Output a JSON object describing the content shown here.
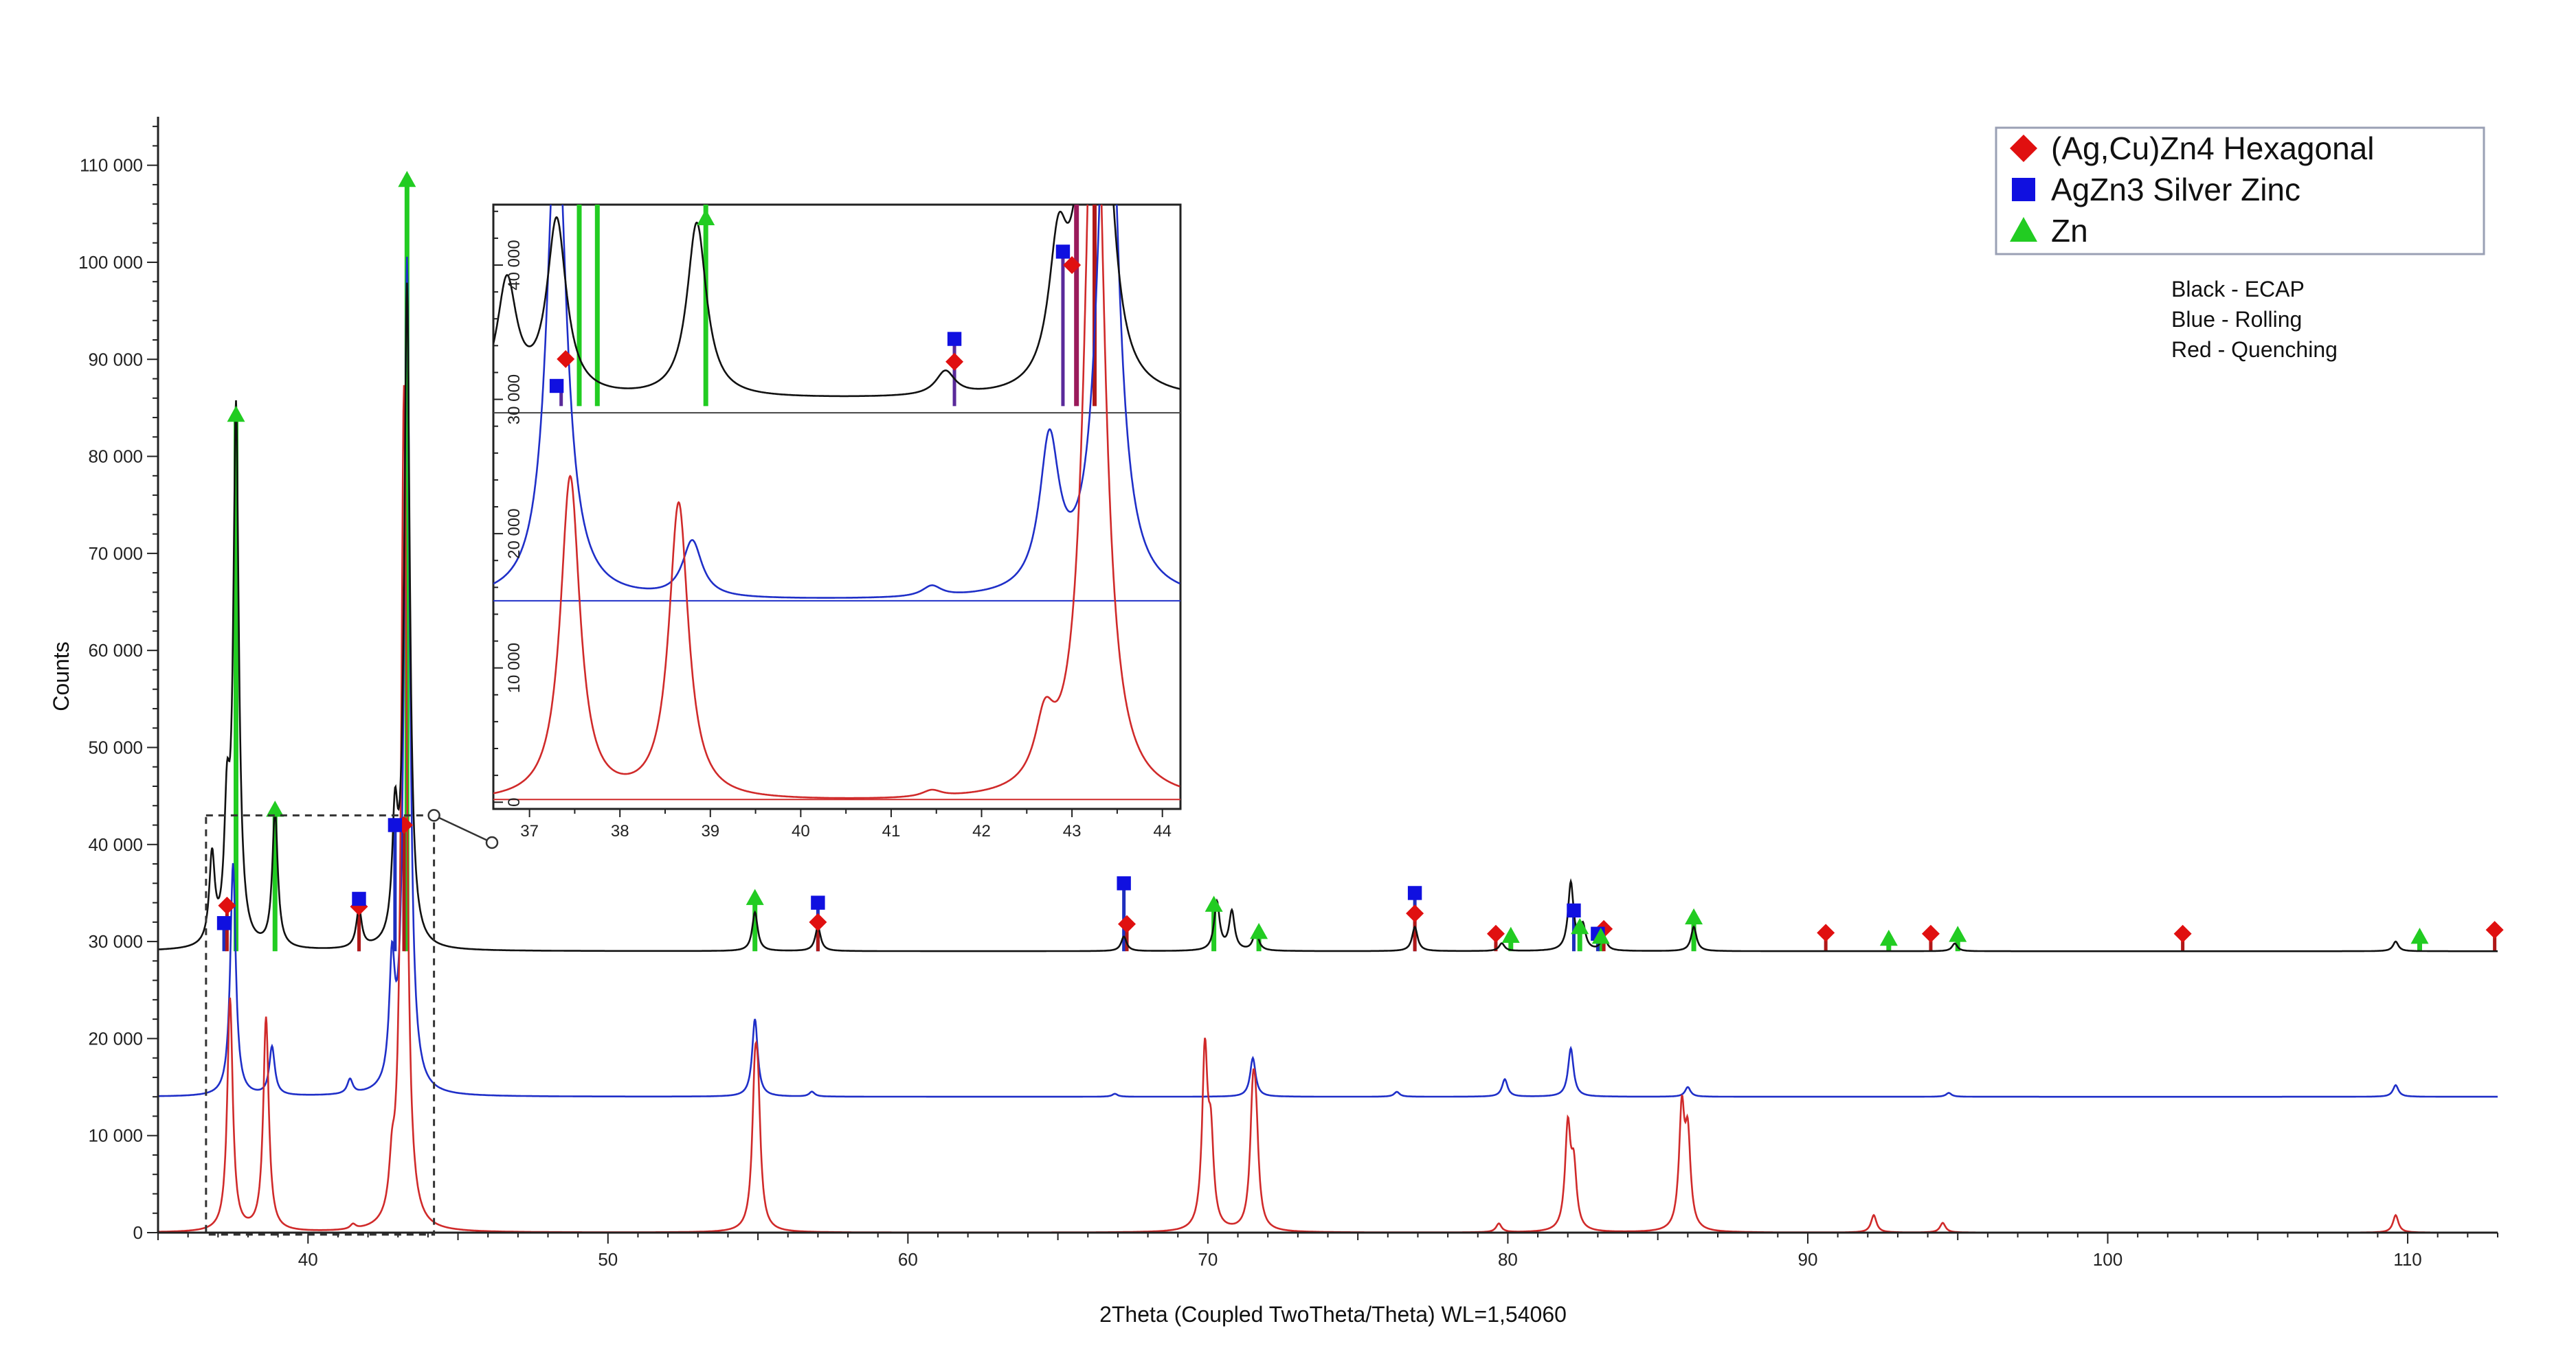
{
  "chart_data": {
    "type": "line",
    "xlabel": "2Theta (Coupled TwoTheta/Theta) WL=1,54060",
    "ylabel": "Counts",
    "xlim": [
      35,
      113
    ],
    "ylim": [
      0,
      115000
    ],
    "x_ticks": [
      40,
      50,
      60,
      70,
      80,
      90,
      100,
      110
    ],
    "y_ticks": [
      {
        "v": 0,
        "label": "0"
      },
      {
        "v": 10000,
        "label": "10 000"
      },
      {
        "v": 20000,
        "label": "20 000"
      },
      {
        "v": 30000,
        "label": "30 000"
      },
      {
        "v": 40000,
        "label": "40 000"
      },
      {
        "v": 50000,
        "label": "50 000"
      },
      {
        "v": 60000,
        "label": "60 000"
      },
      {
        "v": 70000,
        "label": "70 000"
      },
      {
        "v": 80000,
        "label": "80 000"
      },
      {
        "v": 90000,
        "label": "90 000"
      },
      {
        "v": 100000,
        "label": "100 000"
      },
      {
        "v": 110000,
        "label": "110 000"
      }
    ],
    "grid": false,
    "series": [
      {
        "label": "ECAP",
        "color": "#111111",
        "baseline": 29000,
        "peaks": [
          [
            36.8,
            38000
          ],
          [
            37.3,
            41500
          ],
          [
            37.6,
            84000
          ],
          [
            38.9,
            43000
          ],
          [
            41.7,
            33000
          ],
          [
            42.9,
            41000
          ],
          [
            43.3,
            97000
          ],
          [
            54.9,
            33000
          ],
          [
            57.0,
            31500
          ],
          [
            67.2,
            30500
          ],
          [
            70.3,
            34000
          ],
          [
            70.8,
            33000
          ],
          [
            71.6,
            31000
          ],
          [
            76.9,
            31500
          ],
          [
            79.8,
            29800
          ],
          [
            82.1,
            36000
          ],
          [
            82.5,
            31500
          ],
          [
            83.2,
            30500
          ],
          [
            86.2,
            31500
          ],
          [
            94.9,
            29800
          ],
          [
            109.6,
            30000
          ]
        ]
      },
      {
        "label": "Rolling",
        "color": "#1f2fc8",
        "baseline": 14000,
        "peaks": [
          [
            37.5,
            38000
          ],
          [
            38.8,
            19000
          ],
          [
            41.4,
            15500
          ],
          [
            42.8,
            26000
          ],
          [
            43.3,
            100000
          ],
          [
            54.9,
            22000
          ],
          [
            56.8,
            14500
          ],
          [
            66.9,
            14300
          ],
          [
            71.5,
            18000
          ],
          [
            76.3,
            14500
          ],
          [
            79.9,
            15800
          ],
          [
            82.1,
            19000
          ],
          [
            86.0,
            15000
          ],
          [
            94.7,
            14400
          ],
          [
            109.6,
            15200
          ]
        ]
      },
      {
        "label": "Quenching",
        "color": "#d02a2a",
        "baseline": 0,
        "peaks": [
          [
            37.4,
            24000
          ],
          [
            38.6,
            22000
          ],
          [
            41.5,
            500
          ],
          [
            42.8,
            4500
          ],
          [
            43.2,
            87000
          ],
          [
            54.9,
            13000
          ],
          [
            55.0,
            10500
          ],
          [
            69.9,
            18000
          ],
          [
            70.1,
            8500
          ],
          [
            71.5,
            11500
          ],
          [
            71.6,
            8500
          ],
          [
            79.7,
            900
          ],
          [
            82.0,
            10500
          ],
          [
            82.2,
            6000
          ],
          [
            85.8,
            12000
          ],
          [
            86.0,
            9000
          ],
          [
            92.2,
            1800
          ],
          [
            94.5,
            1000
          ],
          [
            109.6,
            1800
          ]
        ]
      }
    ],
    "markers": {
      "ag_cu_zn4": [
        37.3,
        41.7,
        43.2,
        57.0,
        67.3,
        76.9,
        79.6,
        83.2,
        90.6,
        94.1,
        102.5,
        112.9
      ],
      "agzn3": [
        37.2,
        41.7,
        42.9,
        57.0,
        67.2,
        76.9,
        82.2,
        83.0
      ],
      "zn": [
        37.6,
        38.9,
        43.3,
        54.9,
        70.2,
        71.7,
        80.1,
        82.4,
        83.1,
        86.2,
        92.7,
        95.0,
        110.4
      ]
    },
    "marker_positions": {
      "ag_cu_zn4": [
        [
          37.3,
          33700
        ],
        [
          41.7,
          33600
        ],
        [
          43.2,
          42000
        ],
        [
          57.0,
          32000
        ],
        [
          67.3,
          31800
        ],
        [
          76.9,
          32900
        ],
        [
          79.6,
          30800
        ],
        [
          83.2,
          31300
        ],
        [
          90.6,
          30900
        ],
        [
          94.1,
          30800
        ],
        [
          102.5,
          30800
        ],
        [
          112.9,
          31200
        ]
      ],
      "agzn3": [
        [
          37.2,
          31900
        ],
        [
          41.7,
          34400
        ],
        [
          42.9,
          42000
        ],
        [
          57.0,
          34000
        ],
        [
          67.2,
          36000
        ],
        [
          76.9,
          35000
        ],
        [
          82.2,
          33200
        ],
        [
          83.0,
          30800
        ]
      ],
      "zn": [
        [
          37.6,
          84300
        ],
        [
          38.9,
          43600
        ],
        [
          43.3,
          108500
        ],
        [
          54.9,
          34500
        ],
        [
          70.2,
          33800
        ],
        [
          71.7,
          31000
        ],
        [
          80.1,
          30600
        ],
        [
          82.4,
          31500
        ],
        [
          83.1,
          30500
        ],
        [
          86.2,
          32500
        ],
        [
          92.7,
          30300
        ],
        [
          95.0,
          30700
        ],
        [
          110.4,
          30500
        ]
      ]
    },
    "inset": {
      "xlim": [
        36.6,
        44.2
      ],
      "ylim": [
        -500,
        44500
      ],
      "x_ticks": [
        37,
        38,
        39,
        40,
        41,
        42,
        43,
        44
      ],
      "y_ticks": [
        {
          "v": 0,
          "label": "0"
        },
        {
          "v": 10000,
          "label": "10 000"
        },
        {
          "v": 20000,
          "label": "20 000"
        },
        {
          "v": 30000,
          "label": "30 000"
        },
        {
          "v": 40000,
          "label": "40 000"
        }
      ],
      "series": [
        {
          "label": "ECAP",
          "color": "#111111",
          "baseline": 30000,
          "peaks": [
            [
              36.75,
              38500
            ],
            [
              37.3,
              43000
            ],
            [
              38.85,
              43000
            ],
            [
              41.6,
              31800
            ],
            [
              42.85,
              40000
            ],
            [
              43.1,
              41000
            ],
            [
              43.35,
              52000
            ]
          ]
        },
        {
          "label": "Rolling",
          "color": "#1f2fc8",
          "baseline": 15000,
          "peaks": [
            [
              37.3,
              52000
            ],
            [
              38.8,
              19200
            ],
            [
              41.45,
              15800
            ],
            [
              42.75,
              26000
            ],
            [
              43.4,
              60000
            ]
          ]
        },
        {
          "label": "Quenching",
          "color": "#d02a2a",
          "baseline": 0,
          "peaks": [
            [
              37.45,
              24000
            ],
            [
              38.65,
              22000
            ],
            [
              41.45,
              500
            ],
            [
              42.7,
              4500
            ],
            [
              43.25,
              60000
            ]
          ]
        }
      ],
      "markers": {
        "ag_cu_zn4": [
          [
            37.4,
            33000
          ],
          [
            41.7,
            32800
          ],
          [
            43.0,
            40000
          ]
        ],
        "agzn3": [
          [
            37.3,
            31000
          ],
          [
            41.7,
            34500
          ],
          [
            42.9,
            41000
          ]
        ],
        "zn": [
          [
            38.95,
            43500
          ]
        ]
      }
    },
    "legend": {
      "position": "top-right",
      "entries": [
        {
          "label": "(Ag,Cu)Zn4 Hexagonal",
          "marker": "diamond",
          "color": "#e01010"
        },
        {
          "label": "AgZn3 Silver Zinc",
          "marker": "square",
          "color": "#1010e0"
        },
        {
          "label": "Zn",
          "marker": "triangle",
          "color": "#22cc22"
        }
      ]
    },
    "notes": [
      "Black - ECAP",
      "Blue - Rolling",
      "Red - Quenching"
    ]
  }
}
